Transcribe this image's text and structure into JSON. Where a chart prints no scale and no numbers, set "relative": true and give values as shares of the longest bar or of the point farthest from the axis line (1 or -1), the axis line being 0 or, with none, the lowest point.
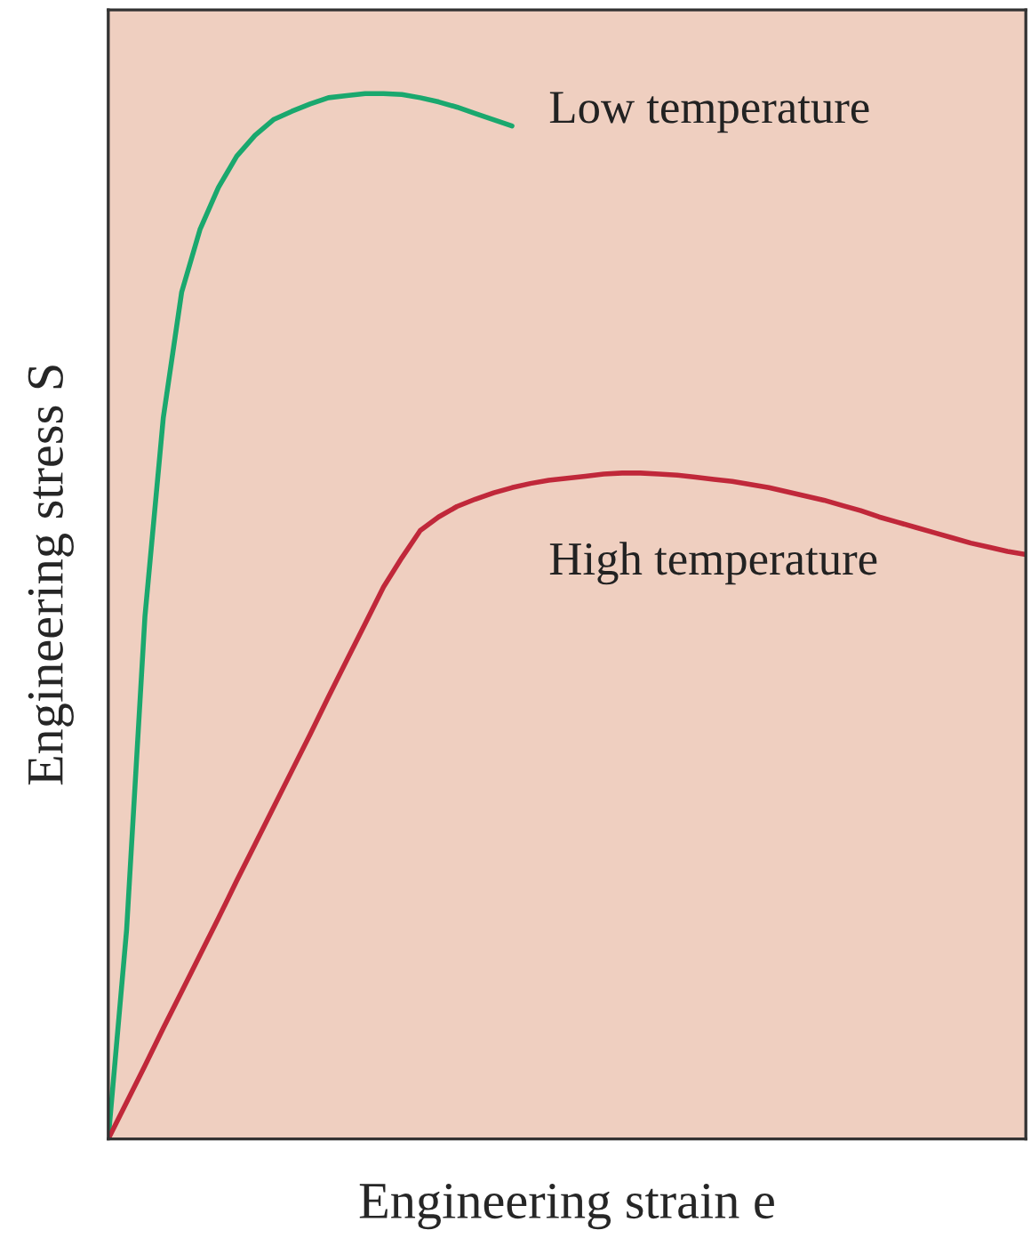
{
  "chart_data": {
    "type": "line",
    "relative": true,
    "xlabel": "Engineering strain e",
    "ylabel": "Engineering stress S",
    "legend": false,
    "marker": "none",
    "line_style": "solid",
    "categories": [
      null,
      null,
      null,
      null,
      null,
      null,
      null,
      null,
      null,
      null,
      null,
      null,
      null,
      null,
      null,
      null,
      null,
      null,
      null,
      null,
      null,
      null,
      null,
      null,
      null,
      null,
      null,
      null,
      null,
      null,
      null,
      null,
      null,
      null,
      null,
      null,
      null,
      null,
      null,
      null,
      null,
      null,
      null,
      null,
      null,
      null,
      null,
      null,
      null,
      null,
      null
    ],
    "series": [
      {
        "name": "Low temperature",
        "color": "#1aa86e",
        "values": [
          0,
          0.2,
          0.5,
          0.69,
          0.81,
          0.87,
          0.91,
          0.94,
          0.96,
          0.975,
          0.983,
          0.99,
          0.996,
          0.998,
          1.0,
          1.0,
          0.999,
          0.996,
          0.992,
          0.987,
          0.981,
          0.975,
          0.969,
          null,
          null,
          null,
          null,
          null,
          null,
          null,
          null,
          null,
          null,
          null,
          null,
          null,
          null,
          null,
          null,
          null,
          null,
          null,
          null,
          null,
          null,
          null,
          null,
          null,
          null,
          null,
          null
        ]
      },
      {
        "name": "High temperature",
        "color": "#c0283a",
        "values": [
          0,
          0.035,
          0.07,
          0.106,
          0.141,
          0.176,
          0.211,
          0.247,
          0.282,
          0.317,
          0.352,
          0.387,
          0.423,
          0.458,
          0.493,
          0.528,
          0.556,
          0.582,
          0.595,
          0.605,
          0.612,
          0.618,
          0.623,
          0.627,
          0.63,
          0.632,
          0.634,
          0.636,
          0.637,
          0.637,
          0.636,
          0.635,
          0.633,
          0.631,
          0.629,
          0.626,
          0.623,
          0.619,
          0.615,
          0.611,
          0.606,
          0.601,
          0.595,
          0.59,
          0.585,
          0.58,
          0.575,
          0.57,
          0.566,
          0.562,
          0.559
        ]
      }
    ]
  }
}
